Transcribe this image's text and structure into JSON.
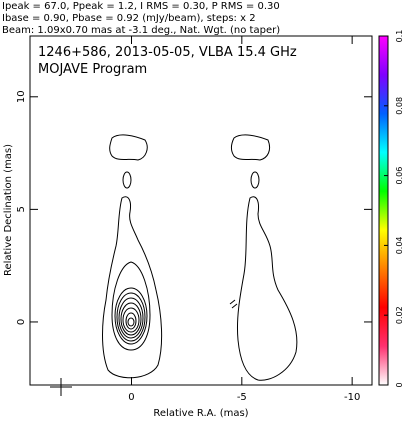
{
  "chart_data": {
    "type": "contour",
    "header": [
      "Ipeak = 67.0, Ppeak = 1.2, I RMS = 0.30, P RMS = 0.30",
      "Ibase = 0.90, Pbase = 0.92 (mJy/beam), steps: x 2",
      "Beam: 1.09x0.70 mas at -3.1 deg., Nat. Wgt. (no taper)"
    ],
    "title": "1246+586, 2013-05-05, VLBA 15.4 GHz",
    "subtitle": "MOJAVE Program",
    "xlabel": "Relative R.A. (mas)",
    "ylabel": "Relative Declination (mas)",
    "xlim": [
      4.6,
      -10.9
    ],
    "xticks": [
      0,
      -5,
      -10
    ],
    "ylim": [
      -2.8,
      12.7
    ],
    "yticks": [
      0,
      5,
      10
    ],
    "colorbar_lim": [
      0,
      0.1
    ],
    "colorbar_ticks": [
      0,
      0.02,
      0.04,
      0.06,
      0.08,
      0.1
    ],
    "colorbar_colors": [
      "#ffffff",
      "#ff3070",
      "#ff0000",
      "#ff8000",
      "#ffff00",
      "#00ff00",
      "#00ffff",
      "#0060ff",
      "#8000ff",
      "#ff00ff"
    ]
  }
}
